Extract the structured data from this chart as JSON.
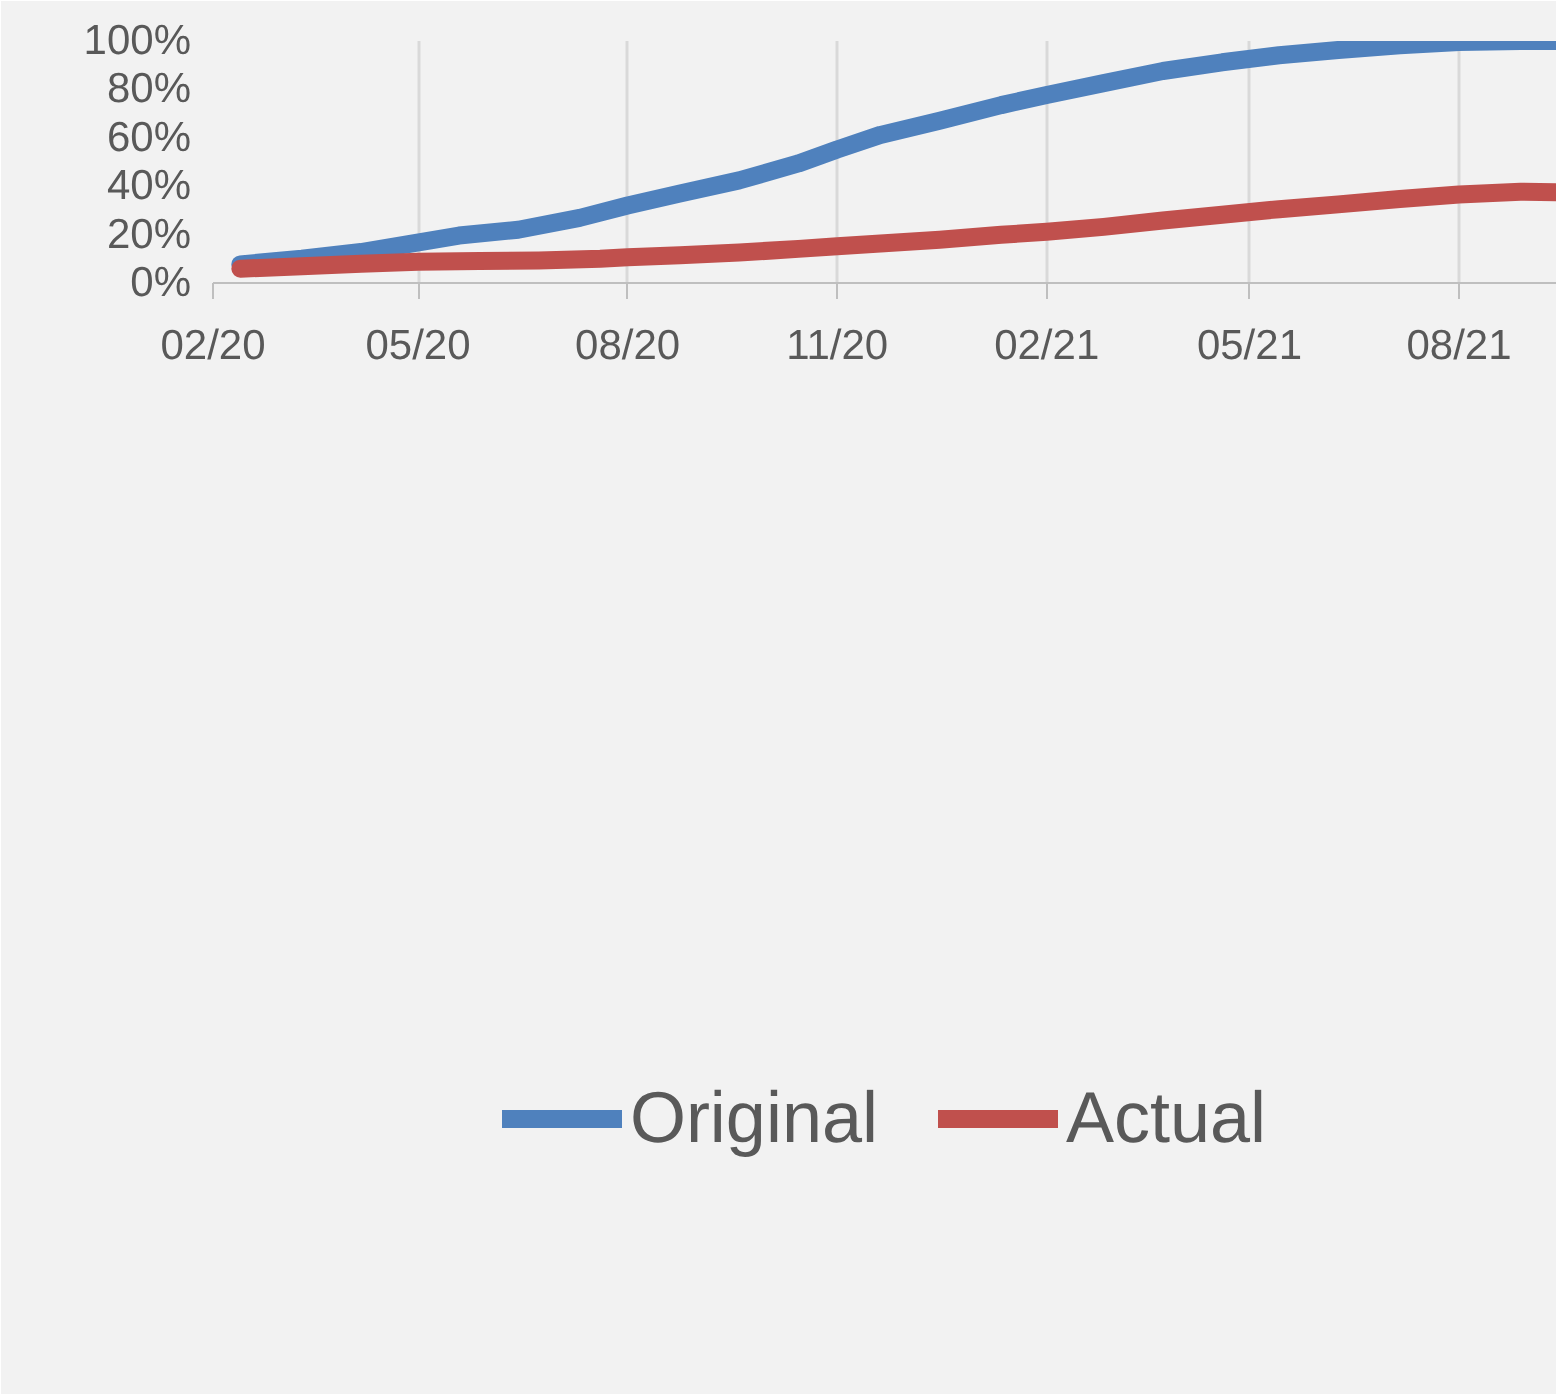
{
  "chart_data": {
    "type": "line",
    "xlim": [
      "2020-02-01",
      "2021-09-13"
    ],
    "xticks": [
      {
        "value": "2020-02-01",
        "label": "02/20"
      },
      {
        "value": "2020-05-01",
        "label": "05/20"
      },
      {
        "value": "2020-08-01",
        "label": "08/20"
      },
      {
        "value": "2020-11-01",
        "label": "11/20"
      },
      {
        "value": "2021-02-01",
        "label": "02/21"
      },
      {
        "value": "2021-05-01",
        "label": "05/21"
      },
      {
        "value": "2021-08-01",
        "label": "08/21"
      }
    ],
    "ylim": [
      0,
      100
    ],
    "yticks": [
      {
        "value": 0,
        "label": "0%"
      },
      {
        "value": 20,
        "label": "20%"
      },
      {
        "value": 40,
        "label": "40%"
      },
      {
        "value": 60,
        "label": "60%"
      },
      {
        "value": 80,
        "label": "80%"
      },
      {
        "value": 100,
        "label": "100%"
      }
    ],
    "grid": "x",
    "legend": "bottom",
    "marker": "none",
    "line_style": "solid",
    "series": [
      {
        "name": "Original",
        "color": "#4f81bd",
        "x": [
          "2020-02-13",
          "2020-03-11",
          "2020-04-06",
          "2020-05-19",
          "2020-06-14",
          "2020-07-11",
          "2020-08-01",
          "2020-08-24",
          "2020-09-19",
          "2020-10-15",
          "2020-11-01",
          "2020-11-20",
          "2020-12-16",
          "2021-01-12",
          "2021-02-01",
          "2021-02-26",
          "2021-03-24",
          "2021-04-19",
          "2021-05-14",
          "2021-06-09",
          "2021-07-06",
          "2021-08-01",
          "2021-08-28",
          "2021-09-13"
        ],
        "values": [
          7.7,
          10,
          12.8,
          19.6,
          22,
          26.9,
          32,
          37,
          42.4,
          49.4,
          55.2,
          61.2,
          67,
          73.5,
          77.7,
          82.6,
          87.6,
          91.2,
          94.1,
          96.3,
          98.2,
          99.6,
          100,
          100
        ]
      },
      {
        "name": "Actual",
        "color": "#c0504d",
        "x": [
          "2020-02-13",
          "2020-03-11",
          "2020-04-06",
          "2020-05-01",
          "2020-05-28",
          "2020-06-23",
          "2020-07-20",
          "2020-08-01",
          "2020-08-24",
          "2020-09-19",
          "2020-10-15",
          "2020-11-01",
          "2020-11-20",
          "2020-12-16",
          "2021-01-12",
          "2021-02-01",
          "2021-02-26",
          "2021-03-24",
          "2021-04-19",
          "2021-05-14",
          "2021-06-09",
          "2021-07-06",
          "2021-08-01",
          "2021-08-28",
          "2021-09-13"
        ],
        "values": [
          5.9,
          6.9,
          8,
          8.8,
          9.1,
          9.3,
          10,
          10.6,
          11.5,
          12.6,
          14.1,
          15.2,
          16.3,
          17.9,
          19.9,
          21.2,
          23.2,
          25.8,
          28.2,
          30.5,
          32.5,
          34.7,
          36.6,
          37.7,
          37.5
        ]
      }
    ]
  }
}
